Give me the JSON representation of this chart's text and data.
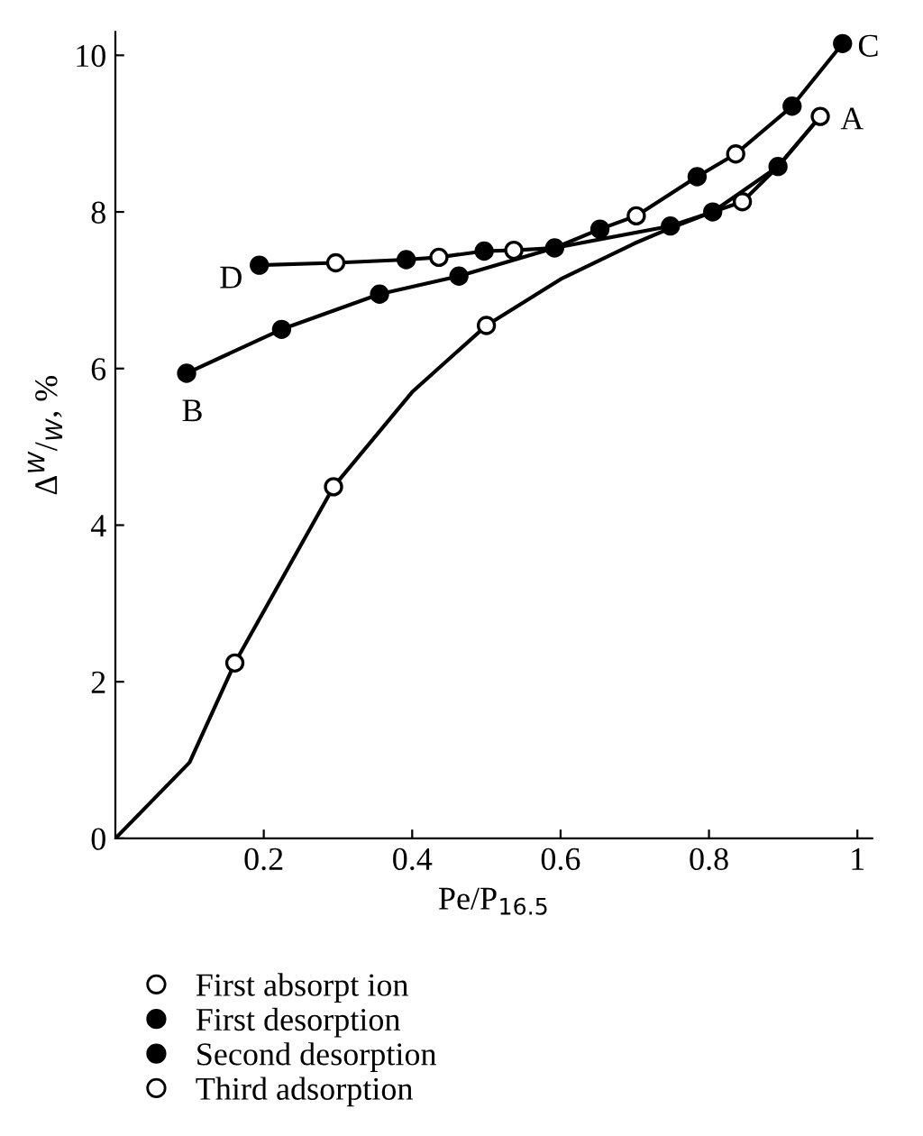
{
  "chart_data": {
    "type": "scatter",
    "xlabel": "Pe/P$_{16.5}$",
    "ylabel": "Δ$^{W}$/$_{W}$, %",
    "xlim": [
      0,
      1.02
    ],
    "ylim": [
      0,
      10.3
    ],
    "xticks": [
      0.2,
      0.4,
      0.6,
      0.8,
      1
    ],
    "yticks": [
      0,
      2,
      4,
      6,
      8,
      10
    ],
    "grid": false,
    "legend": "bottom",
    "marker": "circle",
    "series": [
      {
        "type": "line",
        "marker": "none",
        "color": "#000000",
        "x": [
          0,
          0.1,
          0.161,
          0.294,
          0.4,
          0.5,
          0.6,
          0.7,
          0.75,
          0.805,
          0.845,
          0.893,
          0.95
        ],
        "values": [
          0,
          0.97,
          2.24,
          4.49,
          5.7,
          6.55,
          7.14,
          7.6,
          7.8,
          8.0,
          8.13,
          8.58,
          9.22
        ]
      },
      {
        "type": "line",
        "marker": "none",
        "color": "#000000",
        "x": [
          0.95,
          0.893,
          0.805,
          0.748,
          0.592,
          0.463,
          0.356,
          0.224,
          0.096
        ],
        "values": [
          9.22,
          8.58,
          8.0,
          7.82,
          7.54,
          7.18,
          6.95,
          6.5,
          5.94
        ]
      },
      {
        "type": "line",
        "marker": "none",
        "color": "#000000",
        "x": [
          0.194,
          0.297,
          0.392,
          0.436,
          0.497,
          0.537,
          0.592,
          0.653,
          0.702,
          0.784,
          0.836,
          0.912,
          0.98
        ],
        "values": [
          7.32,
          7.35,
          7.39,
          7.42,
          7.5,
          7.51,
          7.54,
          7.78,
          7.95,
          8.45,
          8.74,
          9.35,
          10.15
        ]
      },
      {
        "name": "First absorpt ion",
        "color": "#ffffff",
        "x": [
          0.161,
          0.294,
          0.5,
          0.845,
          0.95
        ],
        "values": [
          2.24,
          4.49,
          6.55,
          8.13,
          9.22
        ]
      },
      {
        "name": "First desorption",
        "color": "#000000",
        "x": [
          0.893,
          0.805,
          0.748,
          0.592,
          0.463,
          0.356,
          0.224,
          0.096
        ],
        "values": [
          8.58,
          8.0,
          7.82,
          7.54,
          7.18,
          6.95,
          6.5,
          5.94
        ]
      },
      {
        "name": "Second desorption",
        "color": "#000000",
        "x": [
          0.98,
          0.912,
          0.784,
          0.653,
          0.497,
          0.392,
          0.194
        ],
        "values": [
          10.15,
          9.35,
          8.45,
          7.78,
          7.5,
          7.39,
          7.32
        ]
      },
      {
        "name": "Third adsorption",
        "color": "#ffffff",
        "x": [
          0.297,
          0.436,
          0.537,
          0.702,
          0.836
        ],
        "values": [
          7.35,
          7.42,
          7.51,
          7.95,
          8.74
        ]
      }
    ],
    "annotations": [
      {
        "text": "A",
        "x": 0.95,
        "y": 9.22
      },
      {
        "text": "B",
        "x": 0.096,
        "y": 5.94
      },
      {
        "text": "C",
        "x": 0.98,
        "y": 10.15
      },
      {
        "text": "D",
        "x": 0.194,
        "y": 7.32
      }
    ]
  }
}
